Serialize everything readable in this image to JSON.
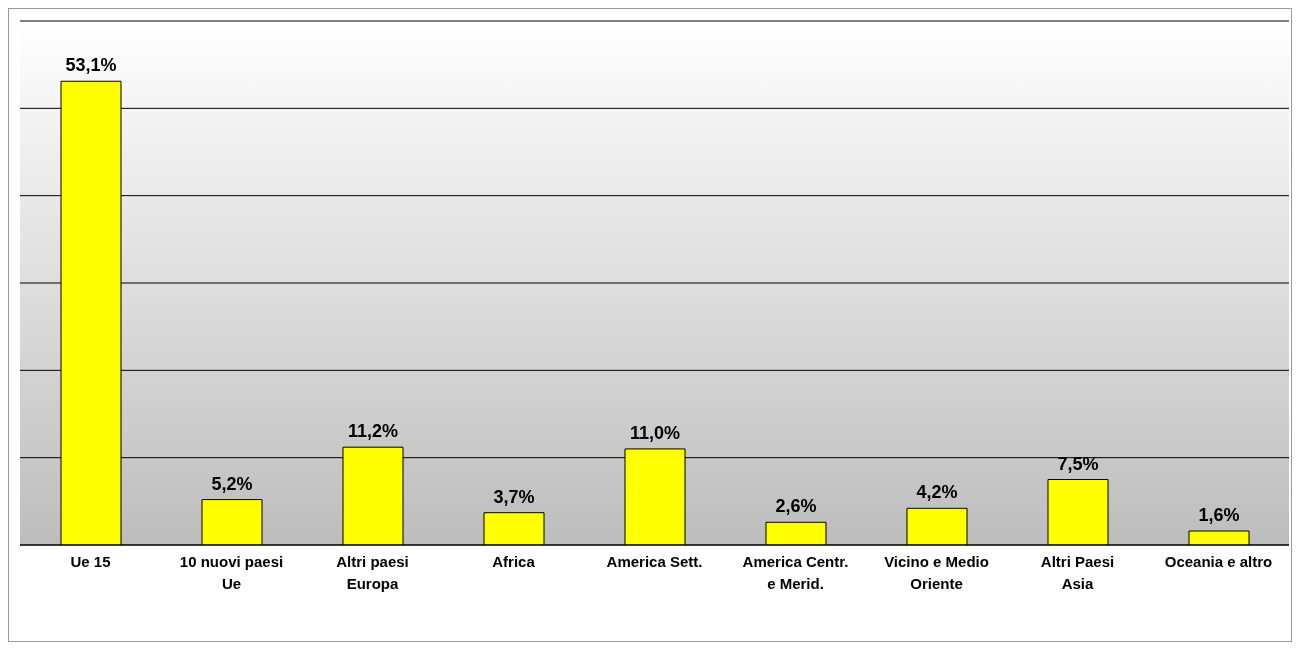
{
  "chart_data": {
    "type": "bar",
    "categories": [
      "Ue 15",
      "10 nuovi paesi Ue",
      "Altri paesi Europa",
      "Africa",
      "America Sett.",
      "America Centr. e Merid.",
      "Vicino e Medio Oriente",
      "Altri Paesi Asia",
      "Oceania e altro"
    ],
    "values": [
      53.1,
      5.2,
      11.2,
      3.7,
      11.0,
      2.6,
      4.2,
      7.5,
      1.6
    ],
    "value_labels": [
      "53,1%",
      "5,2%",
      "11,2%",
      "3,7%",
      "11,0%",
      "2,6%",
      "4,2%",
      "7,5%",
      "1,6%"
    ],
    "color": "#ffff00",
    "relative": false,
    "ylim": [
      0,
      60
    ],
    "grid": "y"
  }
}
